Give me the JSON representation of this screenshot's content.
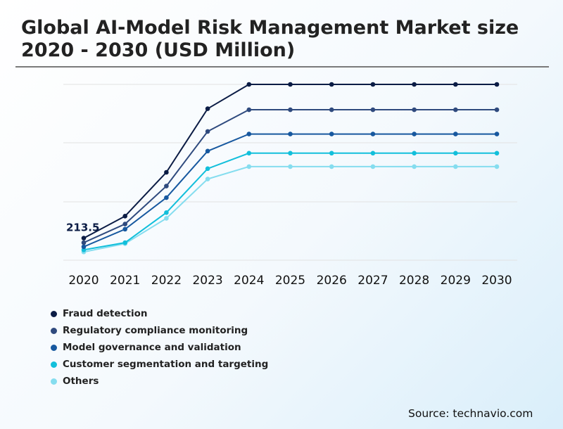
{
  "title": "Global AI-Model Risk Management Market size 2020 - 2030 (USD Million)",
  "source": "Source: technavio.com",
  "chart_data": {
    "type": "line",
    "title": "Global AI-Model Risk Management Market size 2020 - 2030 (USD Million)",
    "xlabel": "",
    "ylabel": "",
    "categories": [
      "2020",
      "2021",
      "2022",
      "2023",
      "2024",
      "2025",
      "2026",
      "2027",
      "2028",
      "2029",
      "2030"
    ],
    "ylim": [
      0,
      1700
    ],
    "grid": true,
    "legend_position": "bottom-left",
    "annotations": [
      {
        "series": 0,
        "index": 0,
        "label": "213.5"
      }
    ],
    "series": [
      {
        "name": "Fraud detection",
        "color": "#0b1c45",
        "values": [
          213.5,
          426,
          850,
          1465,
          1700,
          1700,
          1700,
          1700,
          1700,
          1700,
          1700
        ]
      },
      {
        "name": "Regulatory compliance monitoring",
        "color": "#2f4a7e",
        "values": [
          170,
          350,
          717,
          1245,
          1455,
          1455,
          1455,
          1455,
          1455,
          1455,
          1455
        ]
      },
      {
        "name": "Model governance and validation",
        "color": "#17589f",
        "values": [
          130,
          300,
          605,
          1055,
          1220,
          1220,
          1220,
          1220,
          1220,
          1220,
          1220
        ]
      },
      {
        "name": "Customer segmentation and targeting",
        "color": "#12bfdb",
        "values": [
          100,
          170,
          460,
          885,
          1035,
          1035,
          1035,
          1035,
          1035,
          1035,
          1035
        ]
      },
      {
        "name": "Others",
        "color": "#85ddef",
        "values": [
          80,
          160,
          405,
          785,
          905,
          905,
          905,
          905,
          905,
          905,
          905
        ]
      }
    ]
  }
}
